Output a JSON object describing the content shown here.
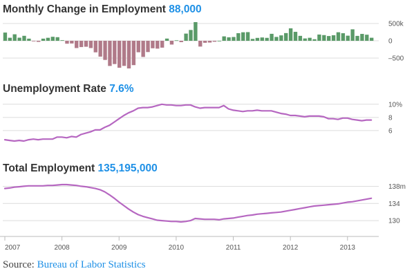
{
  "colors": {
    "accent": "#1e90e6",
    "bar_positive": "#5a9a68",
    "bar_negative": "#b07a89",
    "line": "#b667c1",
    "axis": "#bbbbbb",
    "grid": "#dcdcdc",
    "title": "#333333"
  },
  "source": {
    "label": "Source:",
    "link_text": "Bureau of Labor Statistics"
  },
  "chart_data": [
    {
      "type": "bar",
      "title": "Monthly Change in Employment",
      "highlight": "88,000",
      "x_start": "2007-01",
      "y_ticks": [
        500,
        0,
        -500
      ],
      "y_tick_labels": [
        "500k",
        "0",
        "–500"
      ],
      "ylim": [
        -900,
        560
      ],
      "grid": true,
      "values": [
        238,
        88,
        188,
        90,
        144,
        62,
        -15,
        -31,
        62,
        87,
        116,
        104,
        17,
        -84,
        -78,
        -210,
        -182,
        -172,
        -210,
        -334,
        -458,
        -554,
        -728,
        -673,
        -779,
        -726,
        -800,
        -704,
        -332,
        -467,
        -326,
        -216,
        -227,
        -198,
        64,
        -109,
        14,
        -39,
        208,
        313,
        540,
        -167,
        -58,
        -51,
        -27,
        0,
        128,
        100,
        110,
        220,
        246,
        251,
        54,
        84,
        96,
        85,
        202,
        112,
        157,
        223,
        360,
        259,
        143,
        68,
        87,
        45,
        181,
        165,
        138,
        160,
        247,
        219,
        148,
        332,
        142,
        199,
        176,
        88
      ]
    },
    {
      "type": "line",
      "title": "Unemployment Rate",
      "highlight": "7.6%",
      "x_start": "2007-01",
      "y_ticks": [
        10,
        8,
        6
      ],
      "y_tick_labels": [
        "10%",
        "8",
        "6"
      ],
      "ylim": [
        4.3,
        10.4
      ],
      "grid": true,
      "values": [
        4.6,
        4.5,
        4.4,
        4.5,
        4.4,
        4.6,
        4.7,
        4.6,
        4.7,
        4.7,
        4.7,
        5.0,
        5.0,
        4.9,
        5.1,
        5.0,
        5.4,
        5.6,
        5.8,
        6.1,
        6.1,
        6.5,
        6.8,
        7.3,
        7.8,
        8.3,
        8.7,
        9.0,
        9.4,
        9.5,
        9.5,
        9.6,
        9.8,
        10.0,
        9.9,
        9.9,
        9.8,
        9.8,
        9.9,
        9.9,
        9.6,
        9.4,
        9.5,
        9.5,
        9.5,
        9.5,
        9.8,
        9.3,
        9.1,
        9.0,
        8.9,
        9.0,
        9.0,
        9.1,
        9.0,
        9.0,
        9.0,
        8.8,
        8.6,
        8.5,
        8.3,
        8.3,
        8.2,
        8.1,
        8.2,
        8.2,
        8.2,
        8.1,
        7.8,
        7.8,
        7.7,
        7.9,
        7.9,
        7.7,
        7.6,
        7.5,
        7.6,
        7.6
      ]
    },
    {
      "type": "line",
      "title": "Total Employment",
      "highlight": "135,195,000",
      "x_start": "2007-01",
      "y_ticks": [
        138,
        134,
        130
      ],
      "y_tick_labels": [
        "138m",
        "134",
        "130"
      ],
      "ylim": [
        127.6,
        139.2
      ],
      "grid": true,
      "x_ticks": [
        "2007",
        "2008",
        "2009",
        "2010",
        "2011",
        "2012",
        "2013"
      ],
      "values": [
        137.5,
        137.6,
        137.8,
        137.9,
        138.0,
        138.1,
        138.1,
        138.1,
        138.1,
        138.2,
        138.2,
        138.3,
        138.4,
        138.4,
        138.3,
        138.2,
        138.0,
        137.9,
        137.7,
        137.5,
        137.2,
        136.7,
        136.0,
        135.2,
        134.3,
        133.5,
        132.7,
        132.0,
        131.4,
        131.0,
        130.7,
        130.4,
        130.1,
        130.0,
        129.9,
        129.8,
        129.8,
        129.7,
        129.8,
        130.0,
        130.5,
        130.4,
        130.3,
        130.3,
        130.3,
        130.2,
        130.4,
        130.5,
        130.6,
        130.8,
        131.0,
        131.2,
        131.3,
        131.5,
        131.6,
        131.7,
        131.8,
        131.9,
        132.0,
        132.2,
        132.4,
        132.6,
        132.8,
        133.0,
        133.2,
        133.4,
        133.5,
        133.6,
        133.7,
        133.8,
        133.9,
        134.1,
        134.3,
        134.4,
        134.6,
        134.8,
        135.0,
        135.2
      ]
    }
  ]
}
